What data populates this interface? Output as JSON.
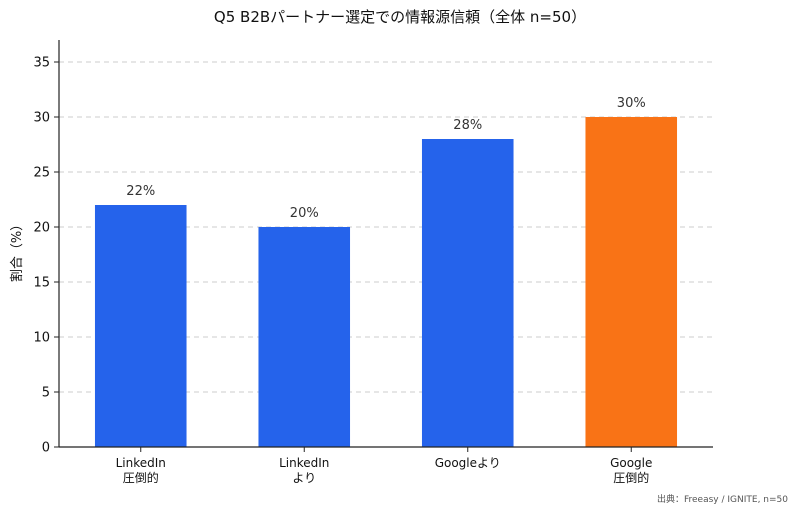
{
  "chart_data": {
    "type": "bar",
    "title": "Q5 B2Bパートナー選定での情報源信頼（全体 n=50）",
    "xlabel": "",
    "ylabel": "割合（%）",
    "ylim": [
      0,
      37
    ],
    "yticks": [
      0,
      5,
      10,
      15,
      20,
      25,
      30,
      35
    ],
    "grid": true,
    "categories": [
      [
        "LinkedIn",
        "圧倒的"
      ],
      [
        "LinkedIn",
        "より"
      ],
      [
        "Googleより"
      ],
      [
        "Google",
        "圧倒的"
      ]
    ],
    "values": [
      22,
      20,
      28,
      30
    ],
    "data_labels": [
      "22%",
      "20%",
      "28%",
      "30%"
    ],
    "colors": [
      "#2563eb",
      "#2563eb",
      "#2563eb",
      "#f97316"
    ],
    "source": "出典：Freeasy / IGNITE, n=50"
  }
}
